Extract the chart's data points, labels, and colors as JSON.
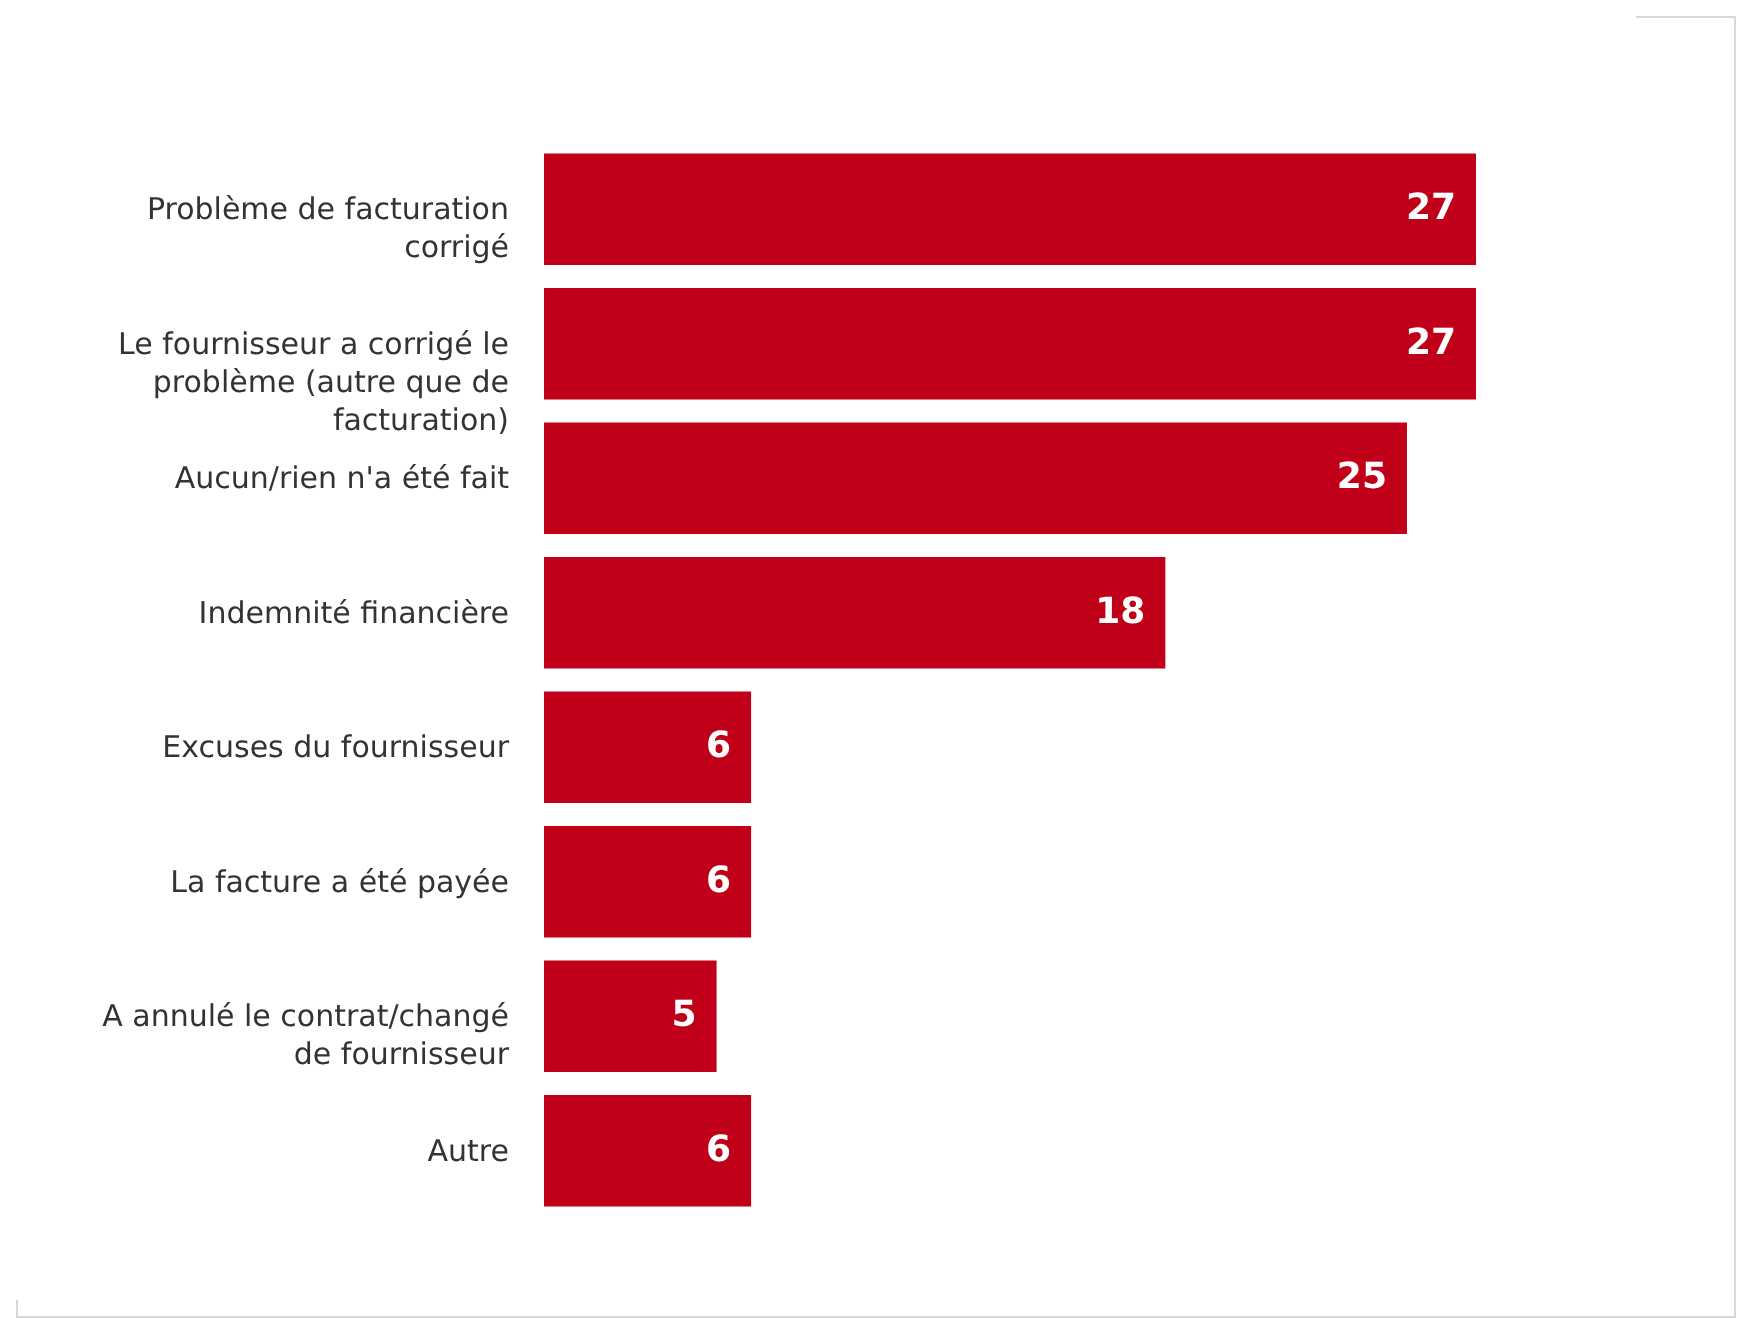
{
  "chart_data": {
    "type": "bar",
    "orientation": "horizontal",
    "data_labels": true,
    "color": "#c00018",
    "categories": [
      "Problème de facturation corrigé",
      "Le fournisseur a corrigé le problème (autre que de facturation)",
      "Aucun/rien n'a été fait",
      "Indemnité financière",
      "Excuses du fournisseur",
      "La facture a été payée",
      "A annulé le contrat/changé de fournisseur",
      "Autre"
    ],
    "values": [
      27,
      27,
      25,
      18,
      6,
      6,
      5,
      6
    ]
  }
}
